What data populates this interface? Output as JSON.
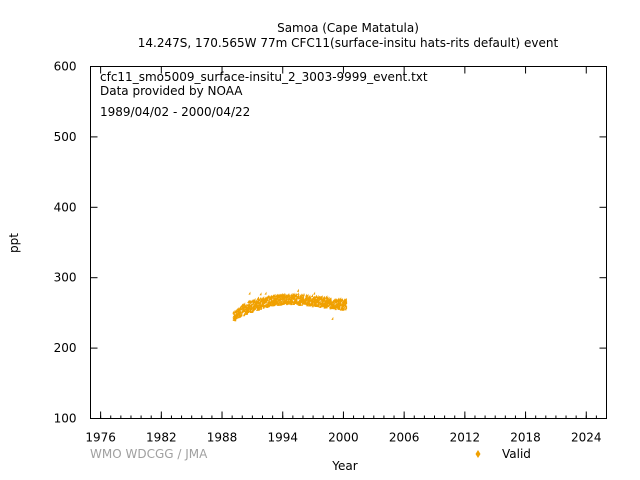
{
  "chart_data": {
    "type": "scatter",
    "title_line1": "Samoa (Cape Matatula)",
    "title_line2": "14.247S, 170.565W 77m    CFC11(surface-insitu hats-rits default) event",
    "annotation_file": "cfc11_smo5009_surface-insitu_2_3003-9999_event.txt",
    "annotation_provider": "Data provided by NOAA",
    "annotation_period": "1989/04/02 - 2000/04/22",
    "xlabel": "Year",
    "ylabel": "ppt",
    "xlim": [
      1975,
      2026
    ],
    "ylim": [
      100,
      600
    ],
    "x_ticks": [
      "1976",
      "1982",
      "1988",
      "1994",
      "2000",
      "2006",
      "2012",
      "2018",
      "2024"
    ],
    "y_ticks": [
      "100",
      "200",
      "300",
      "400",
      "500",
      "600"
    ],
    "legend_position": "bottom-right",
    "credit": "WMO WDCGG / JMA",
    "series": [
      {
        "name": "Valid",
        "color": "#f0a000",
        "marker": "diamond",
        "x": [
          1989.3,
          1989.5,
          1989.7,
          1989.9,
          1990.1,
          1990.3,
          1990.5,
          1990.7,
          1990.9,
          1991.1,
          1991.3,
          1991.5,
          1991.7,
          1991.9,
          1992.1,
          1992.3,
          1992.5,
          1992.7,
          1992.9,
          1993.1,
          1993.3,
          1993.5,
          1993.7,
          1993.9,
          1994.1,
          1994.3,
          1994.5,
          1994.7,
          1994.9,
          1995.1,
          1995.3,
          1995.5,
          1995.7,
          1995.9,
          1996.1,
          1996.3,
          1996.5,
          1996.7,
          1996.9,
          1997.1,
          1997.3,
          1997.5,
          1997.7,
          1997.9,
          1998.1,
          1998.3,
          1998.5,
          1998.7,
          1998.9,
          1999.1,
          1999.3,
          1999.5,
          1999.7,
          1999.9,
          2000.1,
          2000.3
        ],
        "y": [
          244,
          246,
          248,
          250,
          252,
          253,
          255,
          256,
          257,
          258,
          259,
          260,
          261,
          262,
          263,
          263,
          264,
          265,
          265,
          266,
          266,
          267,
          267,
          267,
          268,
          268,
          268,
          268,
          268,
          268,
          268,
          268,
          267,
          267,
          267,
          267,
          266,
          266,
          266,
          265,
          265,
          265,
          264,
          264,
          264,
          263,
          263,
          263,
          262,
          262,
          261,
          261,
          261,
          260,
          260,
          260
        ],
        "spread": [
          6,
          6,
          6,
          7,
          8,
          8,
          8,
          9,
          8,
          8,
          9,
          8,
          8,
          8,
          7,
          7,
          7,
          7,
          7,
          7,
          7,
          7,
          7,
          7,
          7,
          7,
          7,
          7,
          7,
          7,
          7,
          8,
          7,
          7,
          7,
          7,
          7,
          7,
          7,
          7,
          7,
          7,
          7,
          7,
          7,
          7,
          7,
          7,
          7,
          7,
          7,
          7,
          7,
          7,
          7,
          7
        ],
        "outliers": [
          [
            1990.8,
            276
          ],
          [
            1991.9,
            275
          ],
          [
            1995.6,
            280
          ],
          [
            1997.2,
            276
          ],
          [
            1999.0,
            240
          ],
          [
            1989.4,
            238
          ],
          [
            1992.4,
            276
          ],
          [
            1998.4,
            271
          ]
        ]
      }
    ]
  }
}
